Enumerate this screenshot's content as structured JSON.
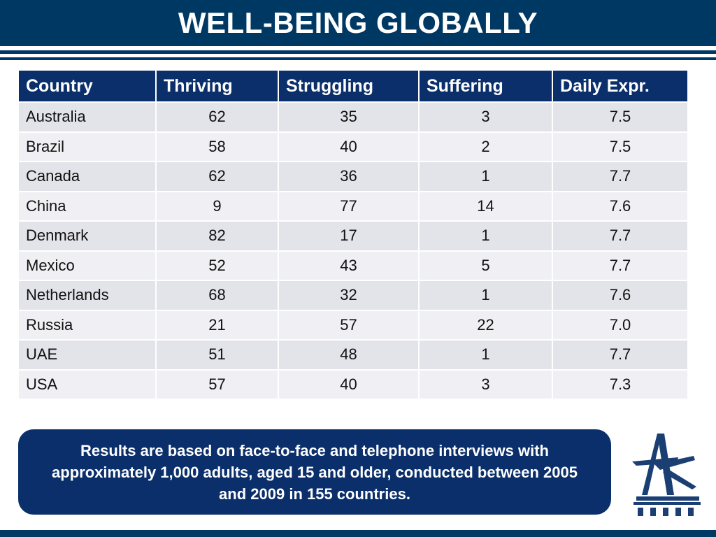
{
  "title": "WELL-BEING GLOBALLY",
  "table": {
    "headers": [
      "Country",
      "Thriving",
      "Struggling",
      "Suffering",
      "Daily Expr."
    ],
    "rows": [
      [
        "Australia",
        "62",
        "35",
        "3",
        "7.5"
      ],
      [
        "Brazil",
        "58",
        "40",
        "2",
        "7.5"
      ],
      [
        "Canada",
        "62",
        "36",
        "1",
        "7.7"
      ],
      [
        "China",
        "9",
        "77",
        "14",
        "7.6"
      ],
      [
        "Denmark",
        "82",
        "17",
        "1",
        "7.7"
      ],
      [
        "Mexico",
        "52",
        "43",
        "5",
        "7.7"
      ],
      [
        "Netherlands",
        "68",
        "32",
        "1",
        "7.6"
      ],
      [
        "Russia",
        "21",
        "57",
        "22",
        "7.0"
      ],
      [
        "UAE",
        "51",
        "48",
        "1",
        "7.7"
      ],
      [
        "USA",
        "57",
        "40",
        "3",
        "7.3"
      ]
    ]
  },
  "note": "Results are based on face-to-face and telephone interviews with approximately 1,000 adults, aged 15 and older, conducted between 2005 and 2009 in 155 countries.",
  "logo": {
    "icon": "star-a-monument-logo",
    "color": "#1b3f73"
  },
  "colors": {
    "brand_navy": "#003864",
    "header_navy": "#0a2f6b",
    "row_light": "#f0f0f4",
    "row_dark": "#e3e3ea"
  }
}
